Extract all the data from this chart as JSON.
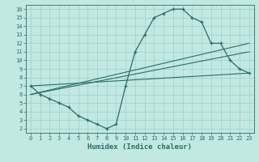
{
  "xlabel": "Humidex (Indice chaleur)",
  "bg_color": "#c2e8e2",
  "grid_color": "#9ecfca",
  "line_color": "#2a6e66",
  "xlim": [
    -0.5,
    23.5
  ],
  "ylim": [
    1.5,
    16.5
  ],
  "xticks": [
    0,
    1,
    2,
    3,
    4,
    5,
    6,
    7,
    8,
    9,
    10,
    11,
    12,
    13,
    14,
    15,
    16,
    17,
    18,
    19,
    20,
    21,
    22,
    23
  ],
  "yticks": [
    2,
    3,
    4,
    5,
    6,
    7,
    8,
    9,
    10,
    11,
    12,
    13,
    14,
    15,
    16
  ],
  "curve_x": [
    0,
    1,
    2,
    3,
    4,
    5,
    6,
    7,
    8,
    9,
    10,
    11,
    12,
    13,
    14,
    15,
    16,
    17,
    18,
    19,
    20,
    21,
    22,
    23
  ],
  "curve_y": [
    7,
    6,
    5.5,
    5,
    4.5,
    3.5,
    3,
    2.5,
    2,
    2.5,
    7,
    11,
    13,
    15,
    15.5,
    16,
    16,
    15,
    14.5,
    12,
    12,
    10,
    9,
    8.5
  ],
  "line2_x": [
    0,
    23
  ],
  "line2_y": [
    7,
    8.5
  ],
  "line3_x": [
    0,
    23
  ],
  "line3_y": [
    6,
    12
  ],
  "line4_x": [
    0,
    23
  ],
  "line4_y": [
    6,
    11
  ]
}
